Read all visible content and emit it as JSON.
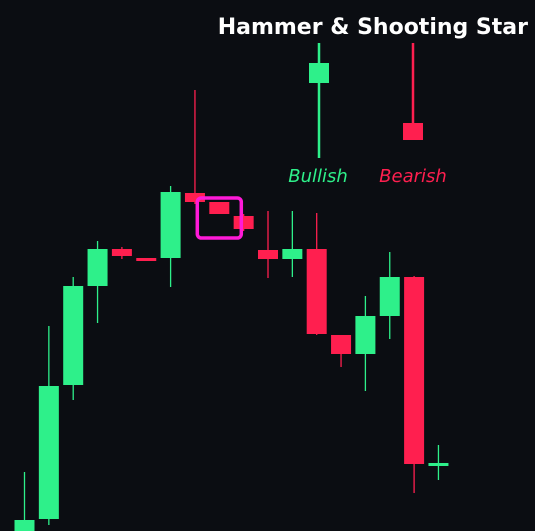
{
  "title": "Hammer & Shooting Star",
  "colors": {
    "background": "#0b0d12",
    "bullish": "#2ef08a",
    "bearish": "#ff1f4f",
    "highlight": "#ff1ad8",
    "title": "#ffffff"
  },
  "legend": {
    "bullish_label": "Bullish",
    "bearish_label": "Bearish",
    "bullish_sample": {
      "open": 120,
      "close": 100,
      "high": 140,
      "low": 25
    },
    "bearish_sample": {
      "open": 60,
      "close": 43,
      "high": 140,
      "low": 43
    }
  },
  "chart_data": {
    "type": "candlestick",
    "title": "Hammer & Shooting Star",
    "xlabel": "",
    "ylabel": "",
    "ylim": [
      0,
      531
    ],
    "grid": false,
    "highlighted_index": 8,
    "highlight_label": "Shooting Star",
    "candles": [
      {
        "open": 0,
        "close": 11,
        "high": 59,
        "low": 0
      },
      {
        "open": 12,
        "close": 145,
        "high": 205,
        "low": 6
      },
      {
        "open": 146,
        "close": 245,
        "high": 254,
        "low": 131
      },
      {
        "open": 245,
        "close": 282,
        "high": 290,
        "low": 208
      },
      {
        "open": 282,
        "close": 275,
        "high": 284,
        "low": 272
      },
      {
        "open": 273,
        "close": 272,
        "high": 273,
        "low": 271
      },
      {
        "open": 273,
        "close": 339,
        "high": 345,
        "low": 244
      },
      {
        "open": 338,
        "close": 329,
        "high": 441,
        "low": 327
      },
      {
        "open": 329,
        "close": 317,
        "high": 329,
        "low": 317
      },
      {
        "open": 315,
        "close": 302,
        "high": 317,
        "low": 300
      },
      {
        "open": 281,
        "close": 272,
        "high": 320,
        "low": 253
      },
      {
        "open": 272,
        "close": 282,
        "high": 320,
        "low": 254
      },
      {
        "open": 282,
        "close": 197,
        "high": 318,
        "low": 196
      },
      {
        "open": 196,
        "close": 177,
        "high": 196,
        "low": 164
      },
      {
        "open": 177,
        "close": 215,
        "high": 235,
        "low": 140
      },
      {
        "open": 215,
        "close": 254,
        "high": 279,
        "low": 192
      },
      {
        "open": 254,
        "close": 67,
        "high": 255,
        "low": 38
      },
      {
        "open": 67,
        "close": 68,
        "high": 86,
        "low": 51
      }
    ]
  }
}
